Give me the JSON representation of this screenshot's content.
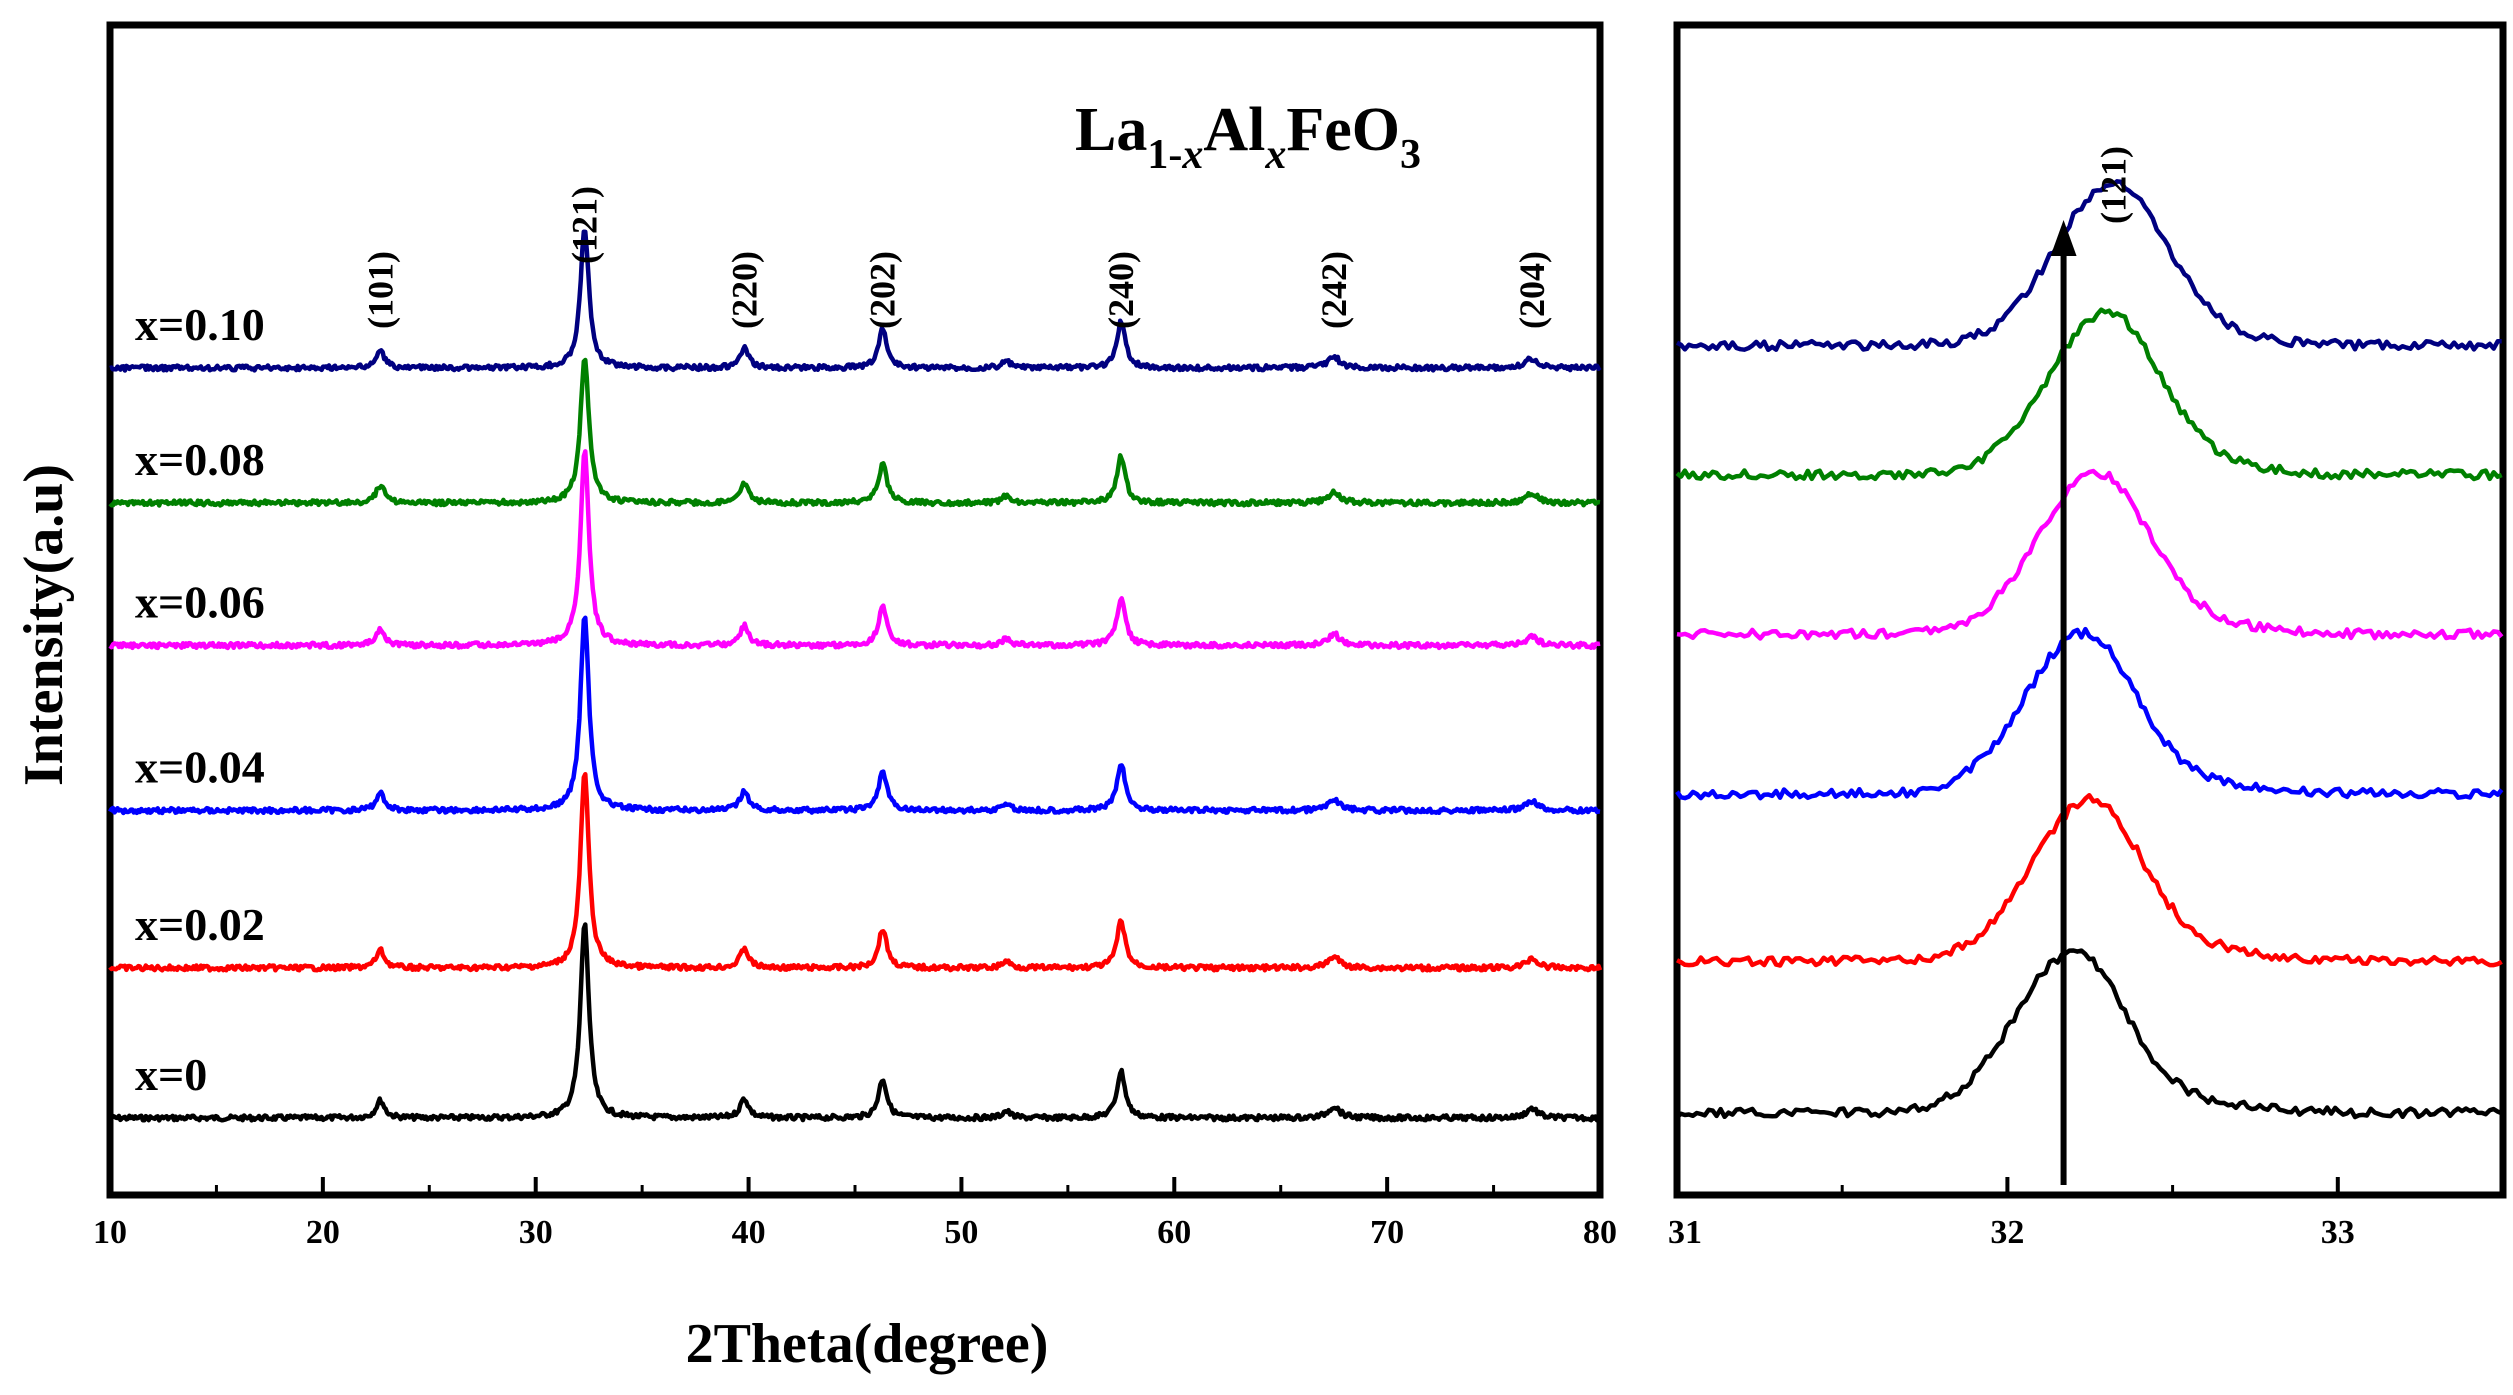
{
  "chart_data": [
    {
      "type": "line",
      "panel": "main",
      "title": "La1-xAlxFeO3",
      "formula": {
        "a": "La",
        "sub1": "1-",
        "sub1x": "x",
        "b": "Al",
        "sub2x": "x",
        "c": "FeO",
        "sub3": "3"
      },
      "xlabel": "2Theta(degree)",
      "ylabel": "Intensity(a.u)",
      "xlim": [
        10,
        80
      ],
      "xticks": [
        10,
        20,
        30,
        40,
        50,
        60,
        70,
        80
      ],
      "xtick_labels": [
        "10",
        "20",
        "30",
        "40",
        "50",
        "60",
        "70",
        "80"
      ],
      "peaks": [
        {
          "pos": 22.7,
          "label": "(101)",
          "height": 0.09
        },
        {
          "pos": 32.3,
          "label": "(121)",
          "height": 1.0
        },
        {
          "pos": 39.8,
          "label": "(220)",
          "height": 0.1
        },
        {
          "pos": 46.3,
          "label": "(202)",
          "height": 0.2
        },
        {
          "pos": 52.1,
          "label": "",
          "height": 0.035
        },
        {
          "pos": 57.5,
          "label": "(240)",
          "height": 0.24
        },
        {
          "pos": 67.5,
          "label": "(242)",
          "height": 0.06
        },
        {
          "pos": 76.8,
          "label": "(204)",
          "height": 0.05
        }
      ],
      "series": [
        {
          "name": "x=0",
          "color": "#000000",
          "baseline": 0.0,
          "scale": 1.0
        },
        {
          "name": "x=0.02",
          "color": "#ff0000",
          "baseline": 1.0,
          "scale": 1.0
        },
        {
          "name": "x=0.04",
          "color": "#0000ff",
          "baseline": 2.05,
          "scale": 1.0
        },
        {
          "name": "x=0.06",
          "color": "#ff00ff",
          "baseline": 3.15,
          "scale": 1.0
        },
        {
          "name": "x=0.08",
          "color": "#008000",
          "baseline": 4.1,
          "scale": 0.75
        },
        {
          "name": "x=0.10",
          "color": "#000080",
          "baseline": 5.0,
          "scale": 0.72
        }
      ]
    },
    {
      "type": "line",
      "panel": "zoom",
      "annotation": "(121)",
      "arrow_position": 32.17,
      "xlim": [
        31,
        33.5
      ],
      "xticks": [
        31,
        32,
        33
      ],
      "xtick_labels": [
        "31",
        "32",
        "33"
      ],
      "series": [
        {
          "name": "x=0",
          "color": "#000000",
          "peak_center": 32.2,
          "baseline": 0.0
        },
        {
          "name": "x=0.02",
          "color": "#ff0000",
          "peak_center": 32.25,
          "baseline": 1.0
        },
        {
          "name": "x=0.04",
          "color": "#0000ff",
          "peak_center": 32.23,
          "baseline": 2.1
        },
        {
          "name": "x=0.06",
          "color": "#ff00ff",
          "peak_center": 32.27,
          "baseline": 3.15
        },
        {
          "name": "x=0.08",
          "color": "#008000",
          "peak_center": 32.3,
          "baseline": 4.2
        },
        {
          "name": "x=0.10",
          "color": "#000080",
          "peak_center": 32.32,
          "baseline": 5.05
        }
      ]
    }
  ]
}
